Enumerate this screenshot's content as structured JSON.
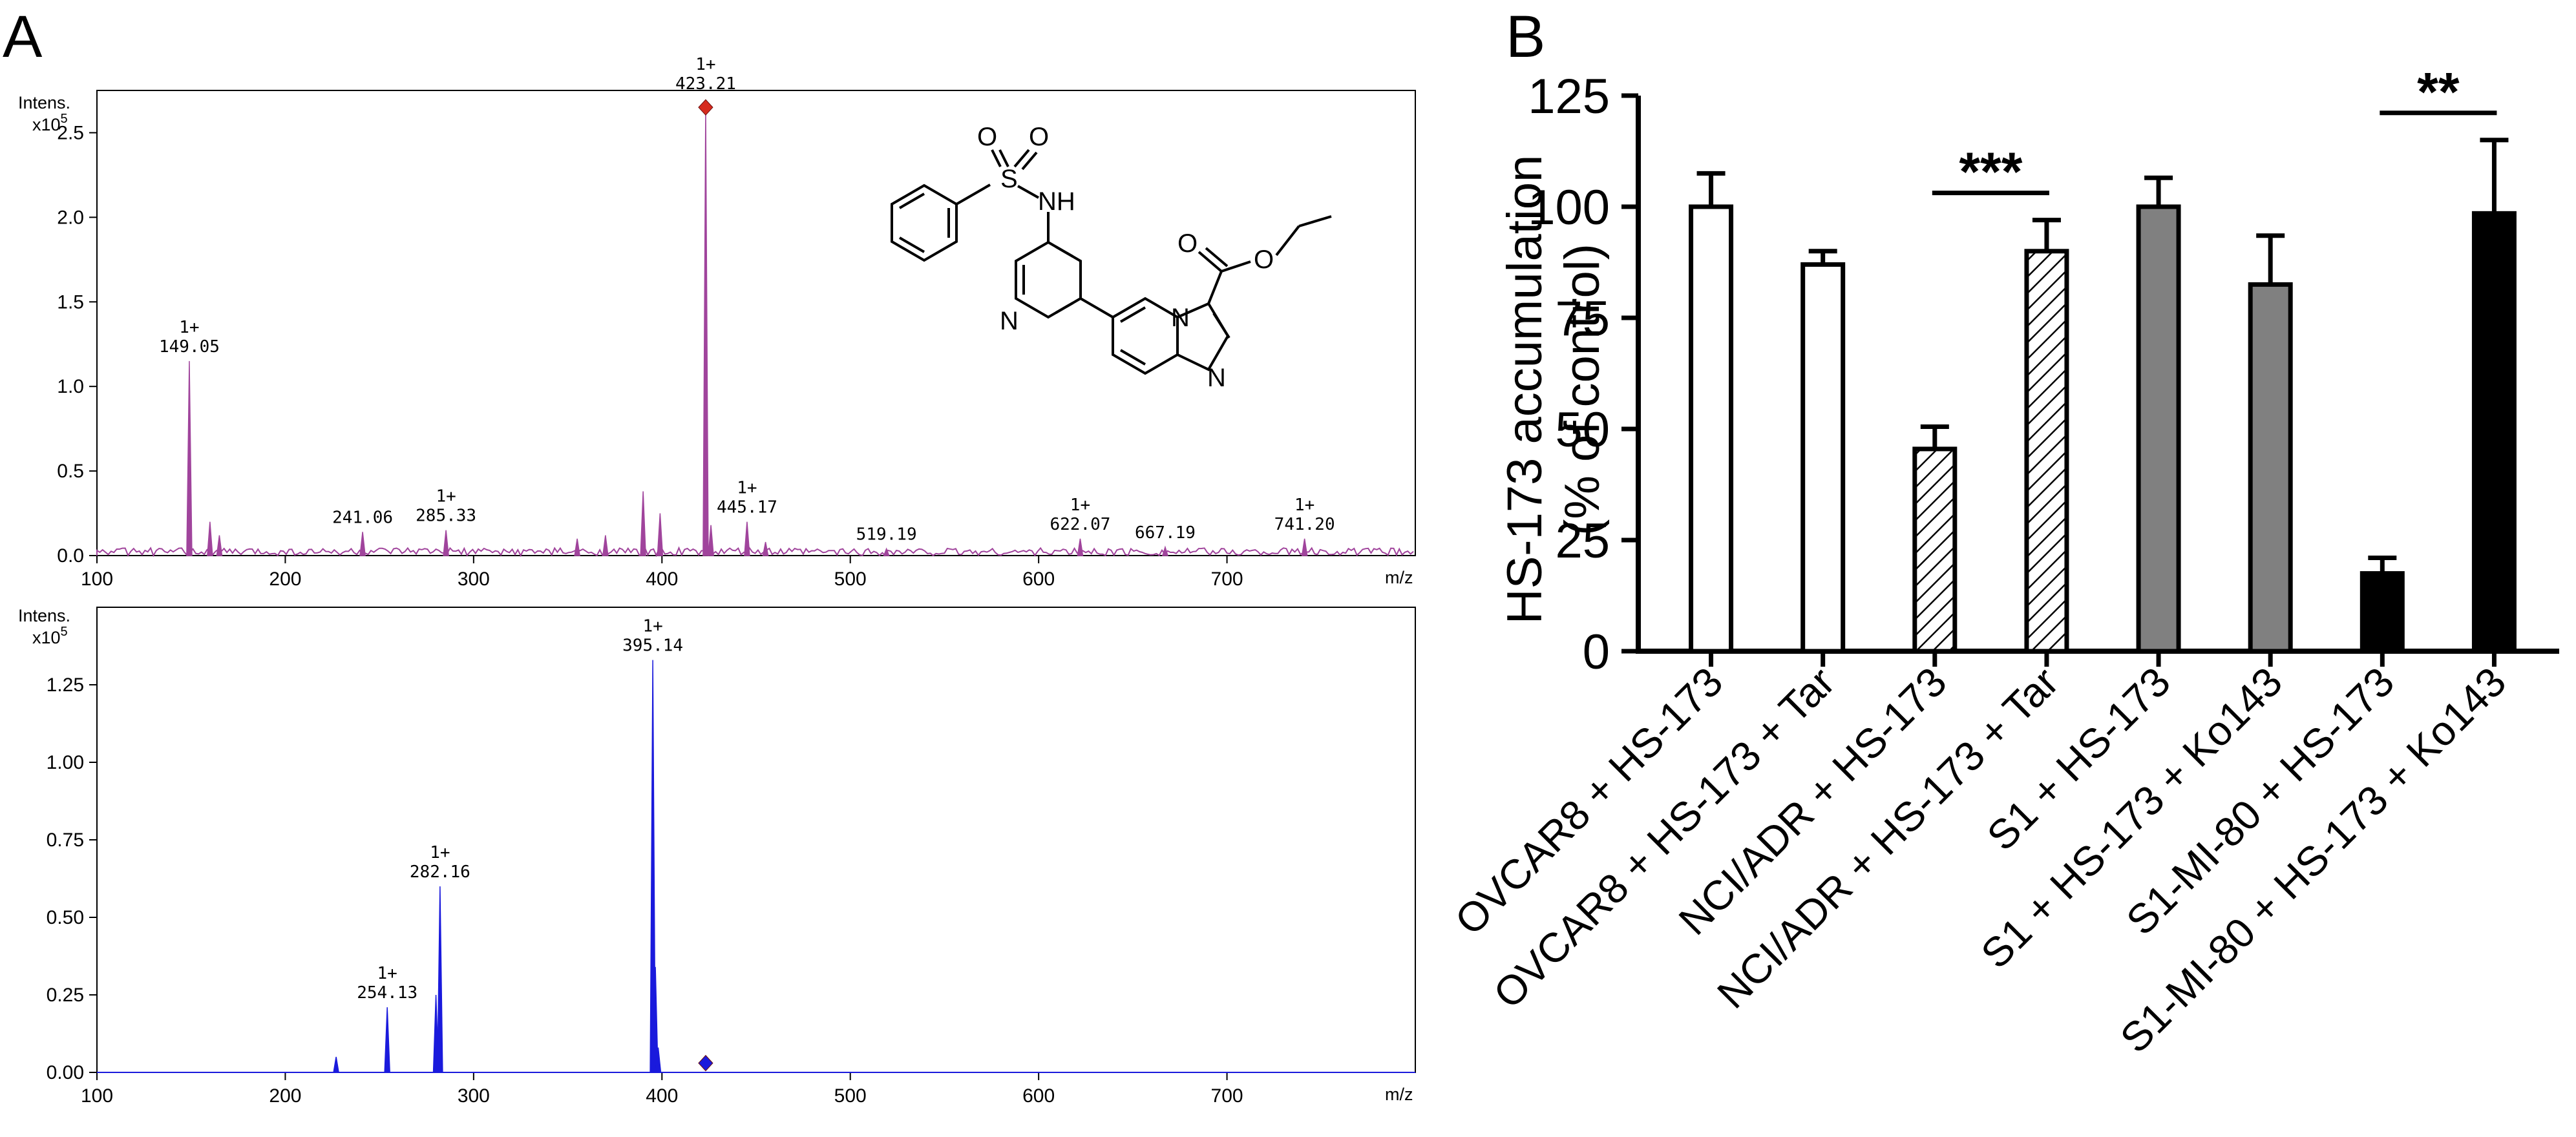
{
  "panel_a": {
    "letter": "A",
    "intensity_label": "Intens.",
    "multiplier_label": "x10",
    "multiplier_exp": "5",
    "x_unit": "m/z",
    "molecule_labels": {
      "O1": "O",
      "S": "S",
      "O2": "O",
      "NH": "NH",
      "N_pyr": "N",
      "N_bridge": "N",
      "N_imid": "N",
      "O_carb": "O",
      "O_ester": "O"
    }
  },
  "panel_b": {
    "letter": "B"
  },
  "chart_data": [
    {
      "type": "line",
      "subtype": "mass-spectrum",
      "xlabel": "m/z",
      "ylabel": "Intens. x10^5",
      "xlim": [
        100,
        800
      ],
      "ylim": [
        0,
        2.75
      ],
      "xticks": [
        "100",
        "200",
        "300",
        "400",
        "500",
        "600",
        "700"
      ],
      "yticks": [
        "0.0",
        "0.5",
        "1.0",
        "1.5",
        "2.0",
        "2.5"
      ],
      "color": "#a0449c",
      "peaks": [
        {
          "mz": 149.05,
          "intensity": 1.15,
          "label": "149.05",
          "charge": "1+"
        },
        {
          "mz": 241.06,
          "intensity": 0.14,
          "label": "241.06",
          "charge": ""
        },
        {
          "mz": 285.33,
          "intensity": 0.15,
          "label": "285.33",
          "charge": "1+"
        },
        {
          "mz": 423.21,
          "intensity": 2.65,
          "label": "423.21",
          "charge": "1+",
          "highlight": true
        },
        {
          "mz": 445.17,
          "intensity": 0.2,
          "label": "445.17",
          "charge": "1+"
        },
        {
          "mz": 519.19,
          "intensity": 0.04,
          "label": "519.19",
          "charge": ""
        },
        {
          "mz": 622.07,
          "intensity": 0.1,
          "label": "622.07",
          "charge": "1+"
        },
        {
          "mz": 667.19,
          "intensity": 0.05,
          "label": "667.19",
          "charge": ""
        },
        {
          "mz": 741.2,
          "intensity": 0.1,
          "label": "741.20",
          "charge": "1+"
        }
      ],
      "unlabeled_peaks": [
        {
          "mz": 160,
          "intensity": 0.2
        },
        {
          "mz": 165,
          "intensity": 0.12
        },
        {
          "mz": 355,
          "intensity": 0.1
        },
        {
          "mz": 370,
          "intensity": 0.12
        },
        {
          "mz": 390,
          "intensity": 0.38
        },
        {
          "mz": 399,
          "intensity": 0.25
        },
        {
          "mz": 426,
          "intensity": 0.18
        },
        {
          "mz": 455,
          "intensity": 0.08
        }
      ],
      "precursor_marker": {
        "mz": 423.21,
        "intensity": 2.65
      }
    },
    {
      "type": "line",
      "subtype": "mass-spectrum",
      "xlabel": "m/z",
      "ylabel": "Intens. x10^5",
      "xlim": [
        100,
        800
      ],
      "ylim": [
        0,
        1.5
      ],
      "xticks": [
        "100",
        "200",
        "300",
        "400",
        "500",
        "600",
        "700"
      ],
      "yticks": [
        "0.00",
        "0.25",
        "0.50",
        "0.75",
        "1.00",
        "1.25"
      ],
      "color": "#1a1adc",
      "peaks": [
        {
          "mz": 254.13,
          "intensity": 0.21,
          "label": "254.13",
          "charge": "1+"
        },
        {
          "mz": 282.16,
          "intensity": 0.6,
          "label": "282.16",
          "charge": "1+"
        },
        {
          "mz": 395.14,
          "intensity": 1.33,
          "label": "395.14",
          "charge": "1+"
        }
      ],
      "unlabeled_peaks": [
        {
          "mz": 227,
          "intensity": 0.05
        },
        {
          "mz": 280,
          "intensity": 0.25
        },
        {
          "mz": 396.5,
          "intensity": 0.34
        },
        {
          "mz": 398,
          "intensity": 0.08
        }
      ],
      "precursor_marker": {
        "mz": 423.21,
        "intensity": 0.03
      }
    },
    {
      "type": "bar",
      "ylabel_lines": [
        "HS-173 accumulation",
        "(% of control)"
      ],
      "ylim": [
        0,
        125
      ],
      "yticks": [
        "0",
        "25",
        "50",
        "75",
        "100",
        "125"
      ],
      "categories": [
        "OVCAR8 + HS-173",
        "OVCAR8 + HS-173 + Tar",
        "NCI/ADR + HS-173",
        "NCI/ADR + HS-173 + Tar",
        "S1 + HS-173",
        "S1 + HS-173 + Ko143",
        "S1-MI-80 + HS-173",
        "S1-MI-80 + HS-173 + Ko143"
      ],
      "values": [
        100,
        87,
        45.5,
        90,
        100,
        82.5,
        17.5,
        98.5
      ],
      "errors": [
        7.5,
        3,
        5,
        7,
        6.5,
        11,
        3.5,
        16.5
      ],
      "fills": [
        "white",
        "white",
        "hatch",
        "hatch",
        "#808080",
        "#808080",
        "#000000",
        "#000000"
      ],
      "significance": [
        {
          "from": 2,
          "to": 3,
          "label": "***"
        },
        {
          "from": 6,
          "to": 7,
          "label": "**"
        }
      ]
    }
  ]
}
